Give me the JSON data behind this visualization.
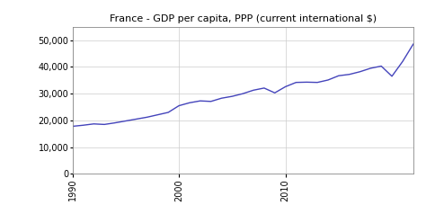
{
  "title": "France - GDP per capita, PPP (current international $)",
  "line_color": "#4444bb",
  "line_width": 1.0,
  "background_color": "#ffffff",
  "grid_color": "#cccccc",
  "xlim": [
    1990,
    2022
  ],
  "ylim": [
    0,
    55000
  ],
  "yticks": [
    0,
    10000,
    20000,
    30000,
    40000,
    50000
  ],
  "xticks": [
    1990,
    2000,
    2010
  ],
  "years": [
    1990,
    1991,
    1992,
    1993,
    1994,
    1995,
    1996,
    1997,
    1998,
    1999,
    2000,
    2001,
    2002,
    2003,
    2004,
    2005,
    2006,
    2007,
    2008,
    2009,
    2010,
    2011,
    2012,
    2013,
    2014,
    2015,
    2016,
    2017,
    2018,
    2019,
    2020,
    2021,
    2022
  ],
  "values": [
    17800,
    18200,
    18700,
    18500,
    19100,
    19800,
    20500,
    21200,
    22100,
    23000,
    25500,
    26600,
    27300,
    27100,
    28300,
    29000,
    30000,
    31300,
    32100,
    30300,
    32600,
    34200,
    34300,
    34200,
    35100,
    36700,
    37200,
    38200,
    39500,
    40300,
    36500,
    42000,
    48500
  ]
}
